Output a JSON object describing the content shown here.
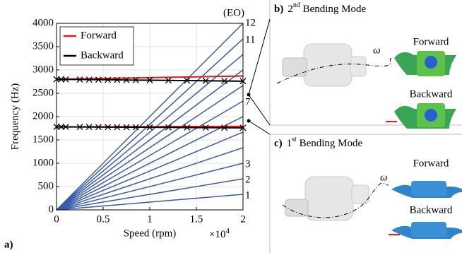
{
  "chart_data": {
    "type": "line",
    "panel_label": "a)",
    "x_label": "Speed (rpm)",
    "y_label": "Frequency (Hz)",
    "x_multiplier": "×10",
    "x_multiplier_exp": "4",
    "line_label_title": "(EO)",
    "xlim": [
      0,
      2
    ],
    "xticks": [
      0,
      0.5,
      1,
      1.5,
      2
    ],
    "ylim": [
      0,
      4000
    ],
    "yticks": [
      0,
      500,
      1000,
      1500,
      2000,
      2500,
      3000,
      3500,
      4000
    ],
    "grid": true,
    "series": [
      {
        "name": "1",
        "color": "#3a5ba8",
        "x": [
          0,
          2
        ],
        "values": [
          0,
          333
        ]
      },
      {
        "name": "2",
        "color": "#3a5ba8",
        "x": [
          0,
          2
        ],
        "values": [
          0,
          667
        ]
      },
      {
        "name": "3",
        "color": "#3a5ba8",
        "x": [
          0,
          2
        ],
        "values": [
          0,
          1000
        ]
      },
      {
        "name": null,
        "color": "#3a5ba8",
        "x": [
          0,
          2
        ],
        "values": [
          0,
          1333
        ]
      },
      {
        "name": null,
        "color": "#3a5ba8",
        "x": [
          0,
          2
        ],
        "values": [
          0,
          1667
        ]
      },
      {
        "name": null,
        "color": "#3a5ba8",
        "x": [
          0,
          2
        ],
        "values": [
          0,
          2000
        ]
      },
      {
        "name": "7",
        "color": "#3a5ba8",
        "x": [
          0,
          2
        ],
        "values": [
          0,
          2333
        ]
      },
      {
        "name": null,
        "color": "#3a5ba8",
        "x": [
          0,
          2
        ],
        "values": [
          0,
          2667
        ]
      },
      {
        "name": null,
        "color": "#3a5ba8",
        "x": [
          0,
          2
        ],
        "values": [
          0,
          3000
        ]
      },
      {
        "name": null,
        "color": "#3a5ba8",
        "x": [
          0,
          2
        ],
        "values": [
          0,
          3333
        ]
      },
      {
        "name": "11",
        "color": "#3a5ba8",
        "x": [
          0,
          2
        ],
        "values": [
          0,
          3667
        ]
      },
      {
        "name": "12",
        "color": "#3a5ba8",
        "x": [
          0,
          2
        ],
        "values": [
          0,
          4000
        ]
      }
    ],
    "modes": [
      {
        "name": "Forward",
        "color": "#e41a1c",
        "marker": false,
        "x": [
          0,
          0.05,
          0.1,
          0.25,
          0.35,
          0.45,
          0.55,
          0.65,
          0.75,
          0.85,
          1,
          1.2,
          1.4,
          1.6,
          1.8,
          2
        ],
        "values": [
          2800,
          2802,
          2804,
          2809,
          2812,
          2816,
          2819,
          2823,
          2826,
          2830,
          2835,
          2842,
          2849,
          2856,
          2863,
          2870
        ]
      },
      {
        "name": "Backward",
        "color": "#000000",
        "marker": true,
        "x": [
          0,
          0.05,
          0.1,
          0.25,
          0.35,
          0.45,
          0.55,
          0.65,
          0.75,
          0.85,
          1,
          1.2,
          1.4,
          1.6,
          1.8,
          2
        ],
        "values": [
          2800,
          2799,
          2798,
          2795,
          2793,
          2791,
          2789,
          2787,
          2785,
          2783,
          2780,
          2776,
          2772,
          2768,
          2764,
          2760
        ]
      },
      {
        "name": null,
        "color": "#e41a1c",
        "marker": false,
        "x": [
          0,
          0.05,
          0.1,
          0.25,
          0.35,
          0.45,
          0.55,
          0.65,
          0.75,
          0.85,
          1,
          1.2,
          1.4,
          1.6,
          1.8,
          2
        ],
        "values": [
          1780,
          1780,
          1781,
          1781,
          1782,
          1782,
          1783,
          1783,
          1784,
          1784,
          1785,
          1786,
          1787,
          1788,
          1789,
          1790
        ]
      },
      {
        "name": null,
        "color": "#000000",
        "marker": true,
        "x": [
          0,
          0.05,
          0.1,
          0.25,
          0.35,
          0.45,
          0.55,
          0.65,
          0.75,
          0.85,
          1,
          1.2,
          1.4,
          1.6,
          1.8,
          2
        ],
        "values": [
          1780,
          1780,
          1779,
          1778,
          1777,
          1776,
          1775,
          1774,
          1773,
          1772,
          1770,
          1768,
          1766,
          1764,
          1762,
          1760
        ]
      }
    ]
  },
  "panels": [
    {
      "label": "b)",
      "number": "2",
      "suffix": "nd",
      "title": " Bending Mode",
      "forward": "Forward",
      "backward": "Backward",
      "omega": "ω"
    },
    {
      "label": "c)",
      "number": "1",
      "suffix": "st",
      "title": " Bending Mode",
      "forward": "Forward",
      "backward": "Backward",
      "omega": "ω"
    }
  ]
}
